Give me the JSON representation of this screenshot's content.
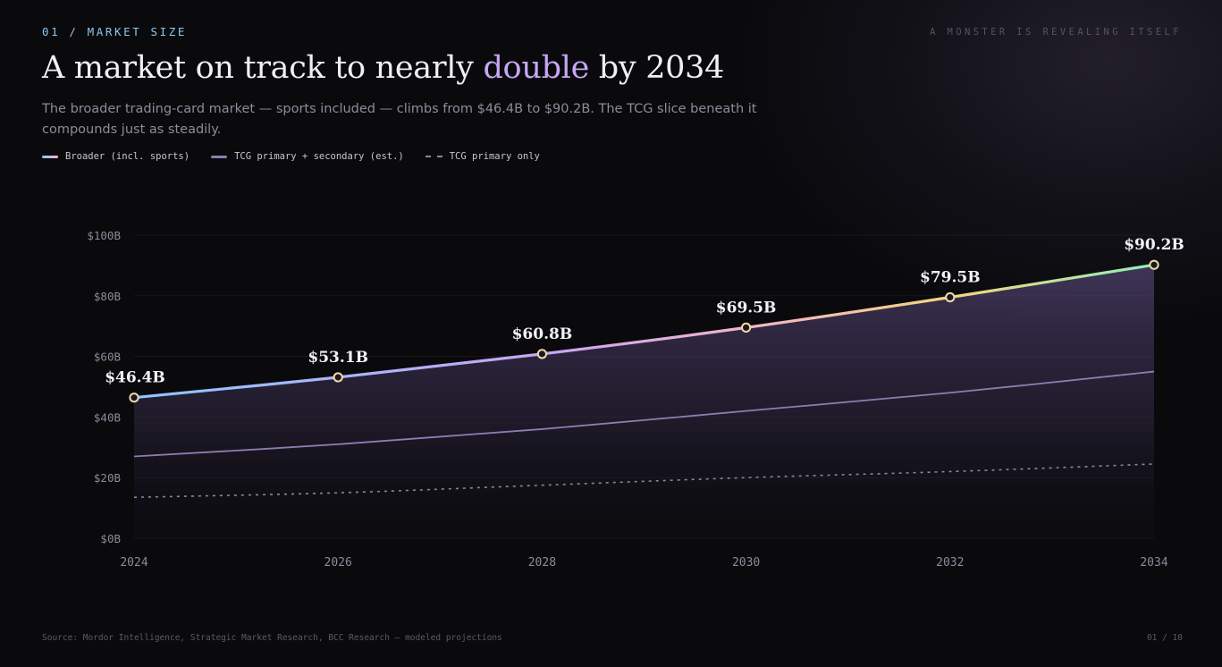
{
  "header": {
    "kicker": "01 / MARKET SIZE",
    "tagline": "A MONSTER IS REVEALING ITSELF",
    "title_pre": "A market on track to nearly ",
    "title_accent": "double",
    "title_post": " by 2034",
    "subtitle": "The broader trading-card market — sports included — climbs from $46.4B to $90.2B. The TCG slice beneath it compounds just as steadily."
  },
  "legend": {
    "broader": "Broader (incl. sports)",
    "tcg": "TCG primary + secondary (est.)",
    "primary": "TCG primary only"
  },
  "colors": {
    "gradient": [
      "#8ec5ff",
      "#c6a5f5",
      "#f2b4c8",
      "#f5d57c",
      "#8ff0b8"
    ],
    "tcg_line": "#8d7db0",
    "primary_line": "#8a86a0",
    "point_fill": "#1b1820",
    "point_stroke": "#f0dba8"
  },
  "chart_data": {
    "type": "line",
    "x": [
      2024,
      2026,
      2028,
      2030,
      2032,
      2034
    ],
    "xticks": [
      "2024",
      "2026",
      "2028",
      "2030",
      "2032",
      "2034"
    ],
    "ylim": [
      0,
      100
    ],
    "yticks": [
      "$0B",
      "$20B",
      "$40B",
      "$60B",
      "$80B",
      "$100B"
    ],
    "grid": true,
    "legend_position": "top-left",
    "series": [
      {
        "name": "Broader (incl. sports)",
        "values": [
          46.4,
          53.1,
          60.8,
          69.5,
          79.5,
          90.2
        ],
        "labels": [
          "$46.4B",
          "$53.1B",
          "$60.8B",
          "$69.5B",
          "$79.5B",
          "$90.2B"
        ],
        "style": "gradient-area"
      },
      {
        "name": "TCG primary + secondary (est.)",
        "values": [
          27.0,
          31.0,
          36.0,
          42.0,
          48.0,
          55.0
        ],
        "style": "solid"
      },
      {
        "name": "TCG primary only",
        "values": [
          13.5,
          15.0,
          17.5,
          20.0,
          22.0,
          24.5
        ],
        "style": "dashed"
      }
    ]
  },
  "footer": {
    "source": "Source: Mordor Intelligence, Strategic Market Research, BCC Research — modeled projections",
    "page": "01 / 10"
  }
}
